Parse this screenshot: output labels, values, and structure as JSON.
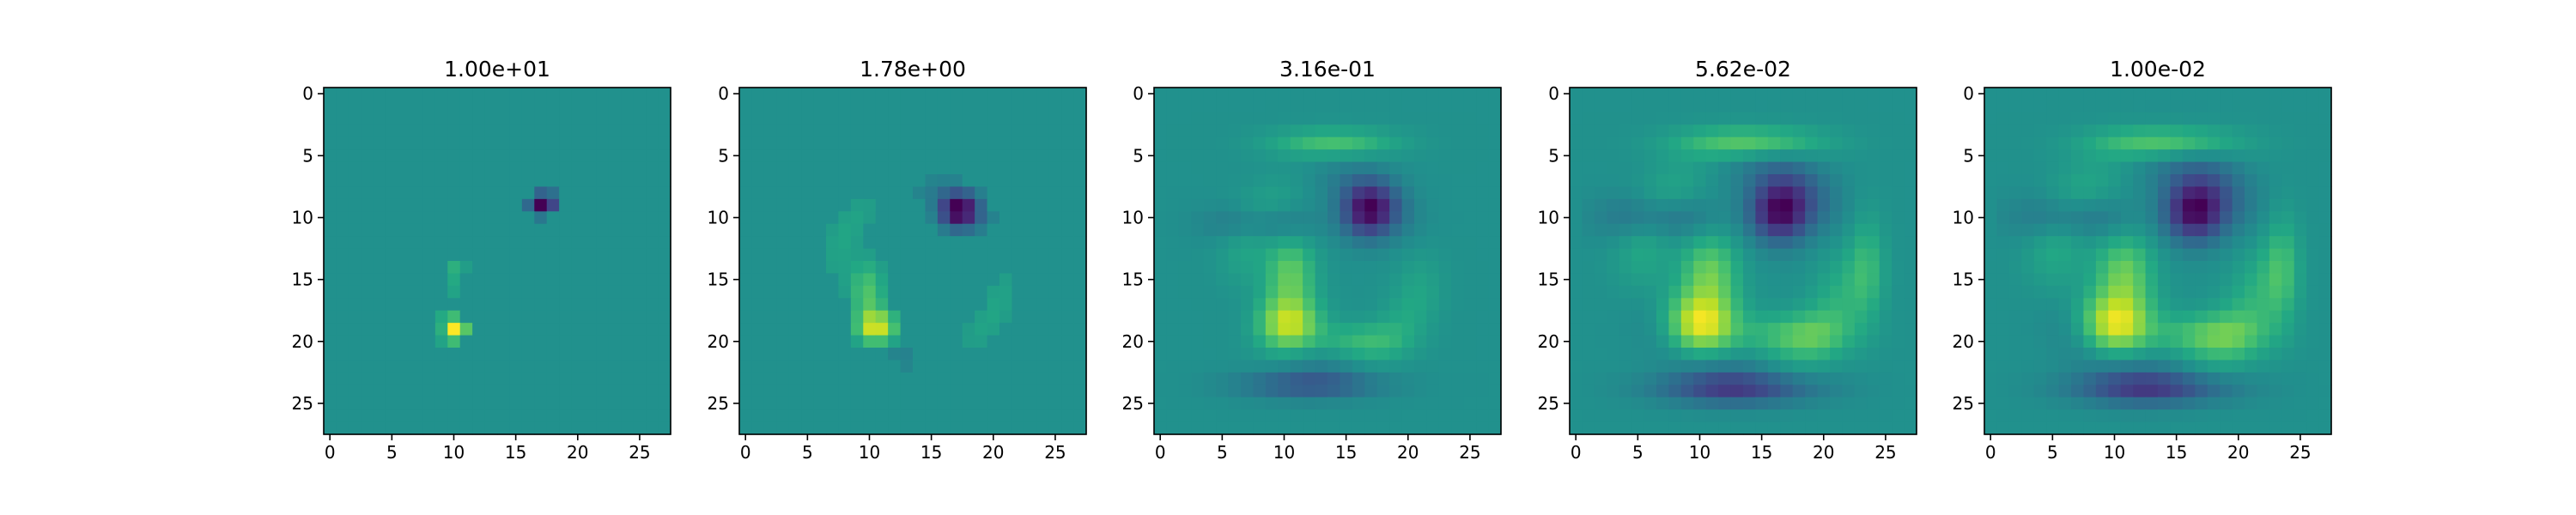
{
  "chart_data": [
    {
      "type": "heatmap",
      "title": "1.00e+01",
      "xlabel": "",
      "ylabel": "",
      "size": 28,
      "xlim": [
        -0.5,
        27.5
      ],
      "ylim": [
        27.5,
        -0.5
      ],
      "x_ticks": [
        "0",
        "5",
        "10",
        "15",
        "20",
        "25"
      ],
      "y_ticks": [
        "0",
        "5",
        "10",
        "15",
        "20",
        "25"
      ],
      "colormap": "viridis",
      "cells": [
        [
          8,
          17,
          -0.35
        ],
        [
          9,
          17,
          -0.95
        ],
        [
          9,
          18,
          -0.55
        ],
        [
          9,
          16,
          -0.3
        ],
        [
          8,
          18,
          -0.25
        ],
        [
          10,
          17,
          -0.2
        ],
        [
          14,
          10,
          0.25
        ],
        [
          15,
          10,
          0.2
        ],
        [
          16,
          10,
          0.15
        ],
        [
          14,
          11,
          0.1
        ],
        [
          18,
          9,
          0.2
        ],
        [
          18,
          10,
          0.35
        ],
        [
          19,
          10,
          0.95
        ],
        [
          19,
          11,
          0.45
        ],
        [
          20,
          10,
          0.35
        ],
        [
          19,
          9,
          0.25
        ],
        [
          20,
          9,
          0.15
        ]
      ]
    },
    {
      "type": "heatmap",
      "title": "1.78e+00",
      "xlabel": "",
      "ylabel": "",
      "size": 28,
      "xlim": [
        -0.5,
        27.5
      ],
      "ylim": [
        27.5,
        -0.5
      ],
      "x_ticks": [
        "0",
        "5",
        "10",
        "15",
        "20",
        "25"
      ],
      "y_ticks": [
        "0",
        "5",
        "10",
        "15",
        "20",
        "25"
      ],
      "colormap": "viridis",
      "blobs": [
        {
          "r": 9.5,
          "c": 17.2,
          "a": -1.0,
          "sr": 1.0,
          "sc": 1.1
        },
        {
          "r": 19.0,
          "c": 10.5,
          "a": 0.95,
          "sr": 1.0,
          "sc": 1.2
        },
        {
          "r": 16.0,
          "c": 9.8,
          "a": 0.45,
          "sr": 1.8,
          "sc": 1.0
        }
      ],
      "ring": {
        "cr": 14.5,
        "cc": 14.0,
        "rad": 6.8,
        "w": 1.0,
        "amp": 0.18
      },
      "sparse": true
    },
    {
      "type": "heatmap",
      "title": "3.16e-01",
      "xlabel": "",
      "ylabel": "",
      "size": 28,
      "xlim": [
        -0.5,
        27.5
      ],
      "ylim": [
        27.5,
        -0.5
      ],
      "x_ticks": [
        "0",
        "5",
        "10",
        "15",
        "20",
        "25"
      ],
      "y_ticks": [
        "0",
        "5",
        "10",
        "15",
        "20",
        "25"
      ],
      "colormap": "viridis",
      "blobs": [
        {
          "r": 9.5,
          "c": 16.8,
          "a": -1.0,
          "sr": 1.5,
          "sc": 1.5
        },
        {
          "r": 18.8,
          "c": 10.2,
          "a": 1.0,
          "sr": 1.6,
          "sc": 1.8
        },
        {
          "r": 14.5,
          "c": 10.5,
          "a": 0.55,
          "sr": 2.0,
          "sc": 1.4
        },
        {
          "r": 4.0,
          "c": 14.0,
          "a": 0.45,
          "sr": 0.8,
          "sc": 3.5
        },
        {
          "r": 23.5,
          "c": 12.0,
          "a": -0.5,
          "sr": 0.8,
          "sc": 4.0
        },
        {
          "r": 10.5,
          "c": 8.0,
          "a": -0.3,
          "sr": 1.0,
          "sc": 3.0
        },
        {
          "r": 20.0,
          "c": 16.0,
          "a": 0.35,
          "sr": 1.0,
          "sc": 2.5
        }
      ],
      "ring": {
        "cr": 14.2,
        "cc": 13.8,
        "rad": 7.2,
        "w": 1.4,
        "amp": 0.22
      },
      "sparse": false
    },
    {
      "type": "heatmap",
      "title": "5.62e-02",
      "xlabel": "",
      "ylabel": "",
      "size": 28,
      "xlim": [
        -0.5,
        27.5
      ],
      "ylim": [
        27.5,
        -0.5
      ],
      "x_ticks": [
        "0",
        "5",
        "10",
        "15",
        "20",
        "25"
      ],
      "y_ticks": [
        "0",
        "5",
        "10",
        "15",
        "20",
        "25"
      ],
      "colormap": "viridis",
      "blobs": [
        {
          "r": 9.5,
          "c": 16.5,
          "a": -1.0,
          "sr": 1.7,
          "sc": 1.7
        },
        {
          "r": 18.8,
          "c": 10.0,
          "a": 1.0,
          "sr": 1.8,
          "sc": 2.0
        },
        {
          "r": 14.5,
          "c": 10.8,
          "a": 0.55,
          "sr": 2.2,
          "sc": 1.6
        },
        {
          "r": 4.0,
          "c": 14.0,
          "a": 0.55,
          "sr": 0.9,
          "sc": 4.0
        },
        {
          "r": 23.8,
          "c": 13.0,
          "a": -0.6,
          "sr": 0.9,
          "sc": 4.5
        },
        {
          "r": 10.0,
          "c": 6.5,
          "a": -0.4,
          "sr": 1.3,
          "sc": 3.0
        },
        {
          "r": 19.5,
          "c": 17.5,
          "a": 0.4,
          "sr": 1.2,
          "sc": 3.0
        },
        {
          "r": 14.0,
          "c": 23.5,
          "a": 0.3,
          "sr": 3.0,
          "sc": 1.0
        }
      ],
      "ring": {
        "cr": 14.0,
        "cc": 13.5,
        "rad": 8.2,
        "w": 1.6,
        "amp": 0.28
      },
      "sparse": false
    },
    {
      "type": "heatmap",
      "title": "1.00e-02",
      "xlabel": "",
      "ylabel": "",
      "size": 28,
      "xlim": [
        -0.5,
        27.5
      ],
      "ylim": [
        27.5,
        -0.5
      ],
      "x_ticks": [
        "0",
        "5",
        "10",
        "15",
        "20",
        "25"
      ],
      "y_ticks": [
        "0",
        "5",
        "10",
        "15",
        "20",
        "25"
      ],
      "colormap": "viridis",
      "blobs": [
        {
          "r": 9.5,
          "c": 16.5,
          "a": -1.0,
          "sr": 1.7,
          "sc": 1.7
        },
        {
          "r": 18.8,
          "c": 10.0,
          "a": 1.0,
          "sr": 1.8,
          "sc": 2.0
        },
        {
          "r": 14.5,
          "c": 10.8,
          "a": 0.55,
          "sr": 2.2,
          "sc": 1.6
        },
        {
          "r": 4.0,
          "c": 14.0,
          "a": 0.55,
          "sr": 0.9,
          "sc": 4.0
        },
        {
          "r": 23.8,
          "c": 13.0,
          "a": -0.6,
          "sr": 0.9,
          "sc": 4.5
        },
        {
          "r": 10.0,
          "c": 6.5,
          "a": -0.4,
          "sr": 1.3,
          "sc": 3.0
        },
        {
          "r": 19.5,
          "c": 17.5,
          "a": 0.45,
          "sr": 1.2,
          "sc": 3.0
        },
        {
          "r": 14.0,
          "c": 23.5,
          "a": 0.35,
          "sr": 3.0,
          "sc": 1.0
        }
      ],
      "ring": {
        "cr": 14.0,
        "cc": 13.5,
        "rad": 8.3,
        "w": 1.7,
        "amp": 0.3
      },
      "sparse": false
    }
  ]
}
